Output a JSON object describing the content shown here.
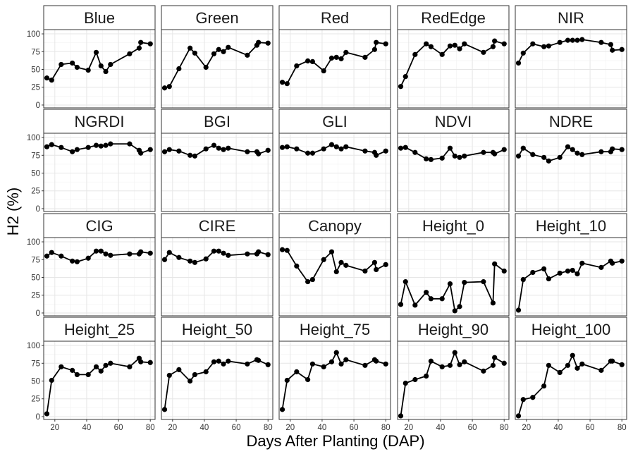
{
  "chart_data": {
    "type": "line",
    "xlabel": "Days After Planting (DAP)",
    "ylabel": "H2 (%)",
    "xlim": [
      13,
      83
    ],
    "ylim": [
      -4,
      106
    ],
    "xticks": [
      20,
      40,
      60,
      80
    ],
    "yticks": [
      0,
      25,
      50,
      75,
      100
    ],
    "layout": "facets 4 rows x 5 columns, shared axes",
    "grid": true,
    "x": [
      15,
      18,
      24,
      31,
      34,
      41,
      46,
      49,
      52,
      55,
      67,
      73,
      74,
      80
    ],
    "panels": [
      {
        "name": "Blue",
        "values": [
          38,
          35,
          57,
          59,
          53,
          49,
          74,
          55,
          47,
          57,
          72,
          80,
          88,
          86
        ]
      },
      {
        "name": "Green",
        "values": [
          24,
          26,
          51,
          80,
          73,
          53,
          72,
          78,
          75,
          81,
          70,
          84,
          88,
          87
        ]
      },
      {
        "name": "Red",
        "values": [
          32,
          30,
          55,
          62,
          61,
          48,
          66,
          67,
          65,
          74,
          67,
          78,
          88,
          86
        ]
      },
      {
        "name": "RedEdge",
        "values": [
          26,
          40,
          71,
          86,
          82,
          71,
          83,
          84,
          79,
          86,
          74,
          82,
          90,
          86
        ]
      },
      {
        "name": "NIR",
        "values": [
          59,
          73,
          86,
          82,
          83,
          88,
          91,
          91,
          91,
          92,
          88,
          85,
          77,
          78
        ]
      },
      {
        "name": "NGRDI",
        "values": [
          87,
          90,
          86,
          80,
          83,
          86,
          89,
          88,
          89,
          91,
          91,
          82,
          78,
          83
        ]
      },
      {
        "name": "BGI",
        "values": [
          80,
          83,
          81,
          75,
          74,
          84,
          89,
          85,
          83,
          85,
          80,
          80,
          77,
          82
        ]
      },
      {
        "name": "GLI",
        "values": [
          86,
          87,
          84,
          78,
          78,
          84,
          90,
          87,
          84,
          87,
          81,
          79,
          75,
          81
        ]
      },
      {
        "name": "NDVI",
        "values": [
          85,
          86,
          79,
          70,
          69,
          71,
          85,
          74,
          72,
          74,
          79,
          79,
          77,
          83
        ]
      },
      {
        "name": "NDRE",
        "values": [
          74,
          85,
          76,
          72,
          67,
          72,
          87,
          83,
          78,
          76,
          80,
          80,
          84,
          83
        ]
      },
      {
        "name": "CIG",
        "values": [
          80,
          85,
          80,
          73,
          72,
          77,
          87,
          87,
          83,
          81,
          83,
          83,
          86,
          84
        ]
      },
      {
        "name": "CIRE",
        "values": [
          75,
          85,
          78,
          73,
          71,
          76,
          87,
          87,
          84,
          81,
          83,
          83,
          86,
          82
        ]
      },
      {
        "name": "Canopy",
        "values": [
          89,
          88,
          66,
          44,
          47,
          75,
          86,
          58,
          71,
          67,
          59,
          71,
          61,
          68
        ]
      },
      {
        "name": "Height_0",
        "values": [
          12,
          44,
          11,
          29,
          20,
          20,
          41,
          3,
          9,
          43,
          44,
          14,
          69,
          59
        ]
      },
      {
        "name": "Height_10",
        "values": [
          4,
          47,
          57,
          62,
          48,
          56,
          59,
          60,
          55,
          70,
          64,
          73,
          70,
          73
        ]
      },
      {
        "name": "Height_25",
        "values": [
          4,
          51,
          70,
          65,
          59,
          59,
          70,
          64,
          72,
          75,
          70,
          82,
          77,
          76
        ]
      },
      {
        "name": "Height_50",
        "values": [
          10,
          58,
          66,
          50,
          59,
          63,
          77,
          78,
          74,
          78,
          74,
          80,
          79,
          73
        ]
      },
      {
        "name": "Height_75",
        "values": [
          10,
          51,
          63,
          52,
          74,
          70,
          77,
          90,
          74,
          80,
          72,
          80,
          78,
          74
        ]
      },
      {
        "name": "Height_90",
        "values": [
          1,
          47,
          52,
          57,
          78,
          70,
          72,
          90,
          73,
          77,
          64,
          72,
          83,
          75
        ]
      },
      {
        "name": "Height_100",
        "values": [
          1,
          24,
          27,
          43,
          72,
          62,
          72,
          86,
          68,
          74,
          65,
          78,
          78,
          73
        ]
      }
    ]
  }
}
